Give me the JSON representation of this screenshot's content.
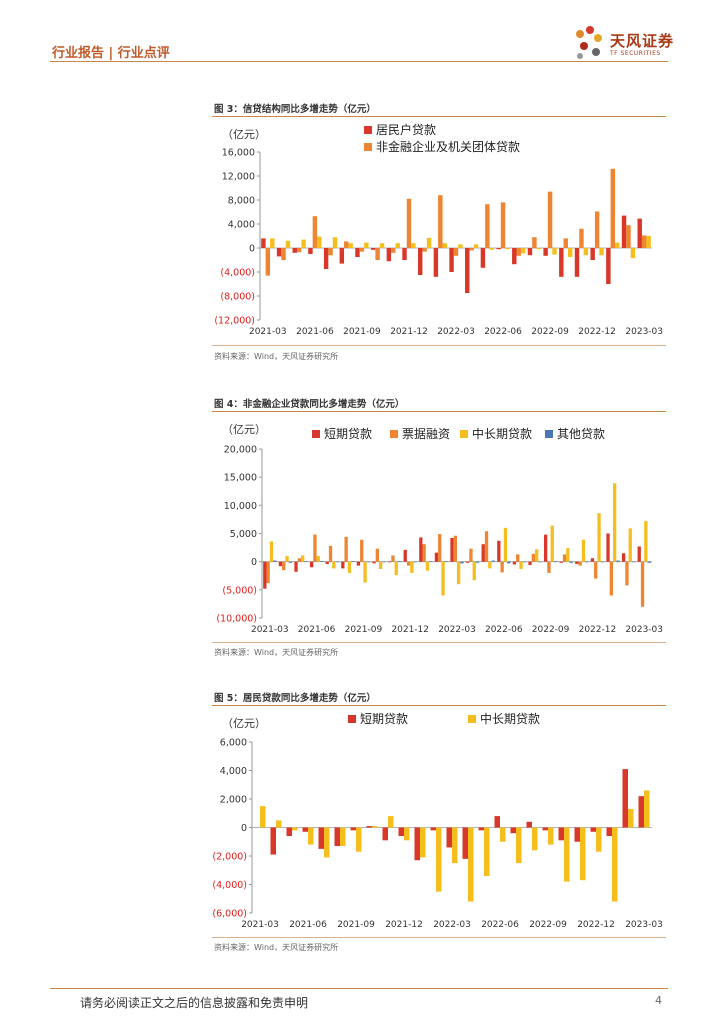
{
  "header": {
    "left_text": "行业报告 | 行业点评",
    "logo_cn": "天风证券",
    "logo_en": "TF SECURITIES"
  },
  "colors": {
    "red": "#d8382a",
    "orange": "#ee8533",
    "yellow": "#f5be1f",
    "blue": "#4a78b5",
    "neg_label": "#e0201b",
    "accent": "#c7864a"
  },
  "footer": {
    "disclaimer": "请务必阅读正文之后的信息披露和免责申明",
    "page": "4"
  },
  "chart_data": [
    {
      "id": "fig3",
      "type": "bar",
      "title": "图 3：信贷结构同比多增走势（亿元）",
      "source": "资料来源：Wind，天风证券研究所",
      "unit": "（亿元）",
      "ylim": [
        -12000,
        16000
      ],
      "yticks": [
        16000,
        12000,
        8000,
        4000,
        0,
        -4000,
        -8000,
        -12000
      ],
      "ytick_labels": [
        "16,000",
        "12,000",
        "8,000",
        "4,000",
        "0",
        "(4,000)",
        "(8,000)",
        "(12,000)"
      ],
      "x_labels": [
        "2021-03",
        "2021-06",
        "2021-09",
        "2021-12",
        "2022-03",
        "2022-06",
        "2022-09",
        "2022-12",
        "2023-03"
      ],
      "categories": [
        "2021-03",
        "2021-04",
        "2021-05",
        "2021-06",
        "2021-07",
        "2021-08",
        "2021-09",
        "2021-10",
        "2021-11",
        "2021-12",
        "2022-01",
        "2022-02",
        "2022-03",
        "2022-04",
        "2022-05",
        "2022-06",
        "2022-07",
        "2022-08",
        "2022-09",
        "2022-10",
        "2022-11",
        "2022-12",
        "2023-01",
        "2023-02",
        "2023-03"
      ],
      "legend": "stacked-top-left",
      "series": [
        {
          "name": "居民户贷款",
          "color": "#d8382a",
          "values": [
            1600,
            -1400,
            -800,
            -1000,
            -3500,
            -2600,
            -1500,
            -300,
            -2200,
            -2000,
            -4500,
            -4800,
            -4000,
            -7500,
            -3300,
            -200,
            -2700,
            -1200,
            -1300,
            -4800,
            -4800,
            -2000,
            -6000,
            5400,
            4900
          ]
        },
        {
          "name": "非金融企业及机关团体贷款",
          "color": "#ee8533",
          "values": [
            -4600,
            -2000,
            -700,
            5300,
            -1200,
            1100,
            -600,
            -2000,
            -800,
            8200,
            -600,
            8800,
            -1300,
            -400,
            7300,
            7600,
            -1300,
            1800,
            9400,
            1600,
            3200,
            6100,
            13200,
            3800,
            2100
          ]
        },
        {
          "name": "",
          "color": "#f5be1f",
          "values": [
            1600,
            1200,
            1400,
            1900,
            1800,
            800,
            900,
            800,
            800,
            800,
            1700,
            800,
            600,
            600,
            -300,
            -200,
            -900,
            -200,
            -1100,
            -1500,
            -1200,
            -1200,
            900,
            -1700,
            2000
          ]
        }
      ]
    },
    {
      "id": "fig4",
      "type": "bar",
      "title": "图 4：非金融企业贷款同比多增走势（亿元）",
      "source": "资料来源：Wind，天风证券研究所",
      "unit": "（亿元）",
      "ylim": [
        -10000,
        20000
      ],
      "yticks": [
        20000,
        15000,
        10000,
        5000,
        0,
        -5000,
        -10000
      ],
      "ytick_labels": [
        "20,000",
        "15,000",
        "10,000",
        "5,000",
        "0",
        "(5,000)",
        "(10,000)"
      ],
      "x_labels": [
        "2021-03",
        "2021-06",
        "2021-09",
        "2021-12",
        "2022-03",
        "2022-06",
        "2022-09",
        "2022-12",
        "2023-03"
      ],
      "categories": [
        "2021-03",
        "2021-04",
        "2021-05",
        "2021-06",
        "2021-07",
        "2021-08",
        "2021-09",
        "2021-10",
        "2021-11",
        "2021-12",
        "2022-01",
        "2022-02",
        "2022-03",
        "2022-04",
        "2022-05",
        "2022-06",
        "2022-07",
        "2022-08",
        "2022-09",
        "2022-10",
        "2022-11",
        "2022-12",
        "2023-01",
        "2023-02",
        "2023-03"
      ],
      "legend": "top",
      "series": [
        {
          "name": "短期贷款",
          "color": "#d8382a",
          "values": [
            -4800,
            -800,
            -1800,
            -1000,
            -400,
            -1200,
            -700,
            -300,
            -100,
            2100,
            4300,
            1600,
            4200,
            -200,
            3100,
            3700,
            -500,
            -600,
            4800,
            -200,
            -400,
            600,
            5000,
            1500,
            2700
          ]
        },
        {
          "name": "票据融资",
          "color": "#ee8533",
          "values": [
            -3800,
            -1500,
            600,
            4800,
            2800,
            4400,
            3900,
            2300,
            1100,
            -700,
            3100,
            4900,
            4600,
            2300,
            5400,
            -1900,
            1300,
            1400,
            -2000,
            1300,
            -700,
            -3000,
            -6000,
            -4200,
            -8000
          ]
        },
        {
          "name": "中长期贷款",
          "color": "#f5be1f",
          "values": [
            3600,
            1000,
            1100,
            1000,
            -1200,
            -2000,
            -3700,
            -1300,
            -2400,
            -2000,
            -1600,
            -6000,
            -4000,
            -3300,
            -1200,
            6000,
            -1300,
            2200,
            6400,
            2400,
            3900,
            8600,
            13900,
            5900,
            7200
          ]
        },
        {
          "name": "其他贷款",
          "color": "#4a78b5",
          "values": [
            200,
            -200,
            100,
            100,
            -100,
            100,
            -100,
            -100,
            100,
            -100,
            100,
            100,
            -300,
            -200,
            200,
            -300,
            -100,
            -100,
            100,
            -200,
            -100,
            -100,
            200,
            -100,
            -200
          ]
        }
      ]
    },
    {
      "id": "fig5",
      "type": "bar",
      "title": "图 5：居民贷款同比多增走势（亿元）",
      "source": "资料来源：Wind，天风证券研究所",
      "unit": "（亿元）",
      "ylim": [
        -6000,
        6000
      ],
      "yticks": [
        6000,
        4000,
        2000,
        0,
        -2000,
        -4000,
        -6000
      ],
      "ytick_labels": [
        "6,000",
        "4,000",
        "2,000",
        "0",
        "(2,000)",
        "(4,000)",
        "(6,000)"
      ],
      "x_labels": [
        "2021-03",
        "2021-06",
        "2021-09",
        "2021-12",
        "2022-03",
        "2022-06",
        "2022-09",
        "2022-12",
        "2023-03"
      ],
      "categories": [
        "2021-03",
        "2021-04",
        "2021-05",
        "2021-06",
        "2021-07",
        "2021-08",
        "2021-09",
        "2021-10",
        "2021-11",
        "2021-12",
        "2022-01",
        "2022-02",
        "2022-03",
        "2022-04",
        "2022-05",
        "2022-06",
        "2022-07",
        "2022-08",
        "2022-09",
        "2022-10",
        "2022-11",
        "2022-12",
        "2023-01",
        "2023-02",
        "2023-03"
      ],
      "legend": "top",
      "series": [
        {
          "name": "短期贷款",
          "color": "#d8382a",
          "values": [
            0,
            -1900,
            -600,
            -300,
            -1500,
            -1300,
            -200,
            100,
            -900,
            -600,
            -2300,
            -200,
            -1400,
            -2200,
            -200,
            800,
            -400,
            400,
            -200,
            -900,
            -1000,
            -300,
            -600,
            4100,
            2200
          ]
        },
        {
          "name": "中长期贷款",
          "color": "#f5be1f",
          "values": [
            1500,
            500,
            -200,
            -1200,
            -2100,
            -1300,
            -1700,
            100,
            800,
            -900,
            -2100,
            -4500,
            -2500,
            -5200,
            -3400,
            -1000,
            -2500,
            -1600,
            -1200,
            -3800,
            -3700,
            -1700,
            -5200,
            1300,
            2600
          ]
        }
      ]
    }
  ]
}
